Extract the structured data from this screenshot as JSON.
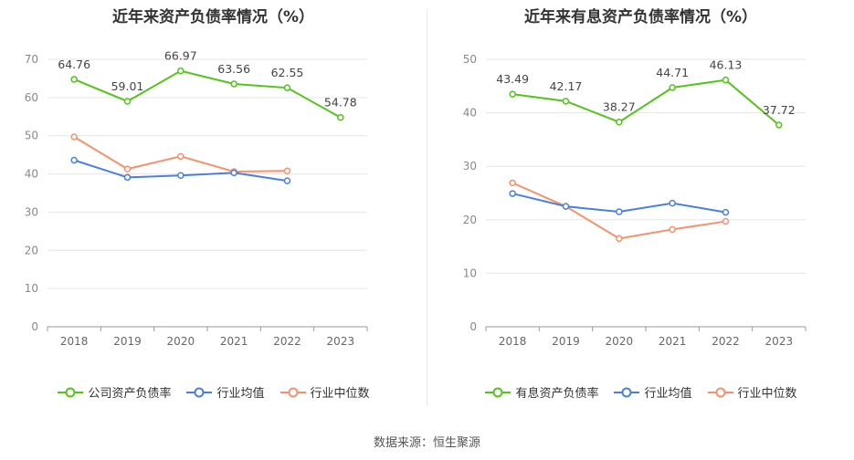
{
  "chart_data": [
    {
      "type": "line",
      "title": "近年来资产负债率情况（%）",
      "categories": [
        "2018",
        "2019",
        "2020",
        "2021",
        "2022",
        "2023"
      ],
      "ylim": [
        0,
        70
      ],
      "yticks": [
        0,
        10,
        20,
        30,
        40,
        50,
        60,
        70
      ],
      "grid": true,
      "legend_position": "bottom",
      "series": [
        {
          "name": "公司资产负债率",
          "color": "#52c41a",
          "values": [
            64.76,
            59.01,
            66.97,
            63.56,
            62.55,
            54.78
          ],
          "labels": [
            "64.76",
            "59.01",
            "66.97",
            "63.56",
            "62.55",
            "54.78"
          ]
        },
        {
          "name": "行业均值",
          "color": "#4a7fe0",
          "values": [
            43.6,
            39.1,
            39.6,
            40.3,
            38.2,
            null
          ]
        },
        {
          "name": "行业中位数",
          "color": "#f4926e",
          "values": [
            49.7,
            41.3,
            44.6,
            40.6,
            40.8,
            null
          ]
        }
      ]
    },
    {
      "type": "line",
      "title": "近年来有息资产负债率情况（%）",
      "categories": [
        "2018",
        "2019",
        "2020",
        "2021",
        "2022",
        "2023"
      ],
      "ylim": [
        0,
        50
      ],
      "yticks": [
        0,
        10,
        20,
        30,
        40,
        50
      ],
      "grid": true,
      "legend_position": "bottom",
      "series": [
        {
          "name": "有息资产负债率",
          "color": "#52c41a",
          "values": [
            43.49,
            42.17,
            38.27,
            44.71,
            46.13,
            37.72
          ],
          "labels": [
            "43.49",
            "42.17",
            "38.27",
            "44.71",
            "46.13",
            "37.72"
          ]
        },
        {
          "name": "行业均值",
          "color": "#4a7fe0",
          "values": [
            24.9,
            22.5,
            21.5,
            23.1,
            21.4,
            null
          ]
        },
        {
          "name": "行业中位数",
          "color": "#f4926e",
          "values": [
            26.9,
            22.5,
            16.5,
            18.2,
            19.7,
            null
          ]
        }
      ]
    }
  ],
  "source": "数据来源：恒生聚源"
}
